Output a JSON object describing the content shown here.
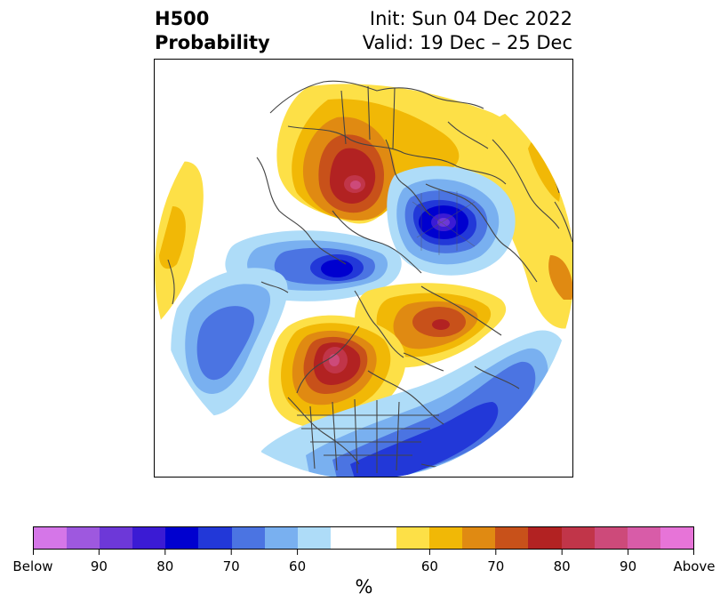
{
  "title": {
    "left_line1": "H500",
    "left_line2": "Probability",
    "right_line1": "Init: Sun 04 Dec 2022",
    "right_line2": "Valid: 19 Dec – 25 Dec"
  },
  "map": {
    "projection": "north-polar-stereographic",
    "anomalies": [
      {
        "name": "ridge-western-north-america",
        "sign": "above",
        "max_percent": 90
      },
      {
        "name": "ridge-central-asia",
        "sign": "above",
        "max_percent": 90
      },
      {
        "name": "ridge-north-atlantic",
        "sign": "above",
        "max_percent": 80
      },
      {
        "name": "trough-siberia-arctic",
        "sign": "below",
        "max_percent": 90
      },
      {
        "name": "trough-bering-alaska",
        "sign": "below",
        "max_percent": 80
      },
      {
        "name": "trough-eastern-pacific",
        "sign": "below",
        "max_percent": 70
      },
      {
        "name": "trough-southeast-us-atlantic",
        "sign": "below",
        "max_percent": 80
      }
    ]
  },
  "colorbar": {
    "colors_below": [
      "#d576e8",
      "#9e58df",
      "#6d38d8",
      "#3b1bd4",
      "#0000cf",
      "#2238d8",
      "#4b74e2",
      "#79b0f0",
      "#aedcf8"
    ],
    "color_neutral": "#ffffff",
    "colors_above": [
      "#fde047",
      "#f1b806",
      "#e08a12",
      "#c8511a",
      "#b22222",
      "#c13549",
      "#cd4a7a",
      "#d85ca8",
      "#e774d8"
    ],
    "tick_labels": [
      "Below",
      "90",
      "80",
      "70",
      "60",
      "60",
      "70",
      "80",
      "90",
      "Above"
    ],
    "unit": "%"
  }
}
